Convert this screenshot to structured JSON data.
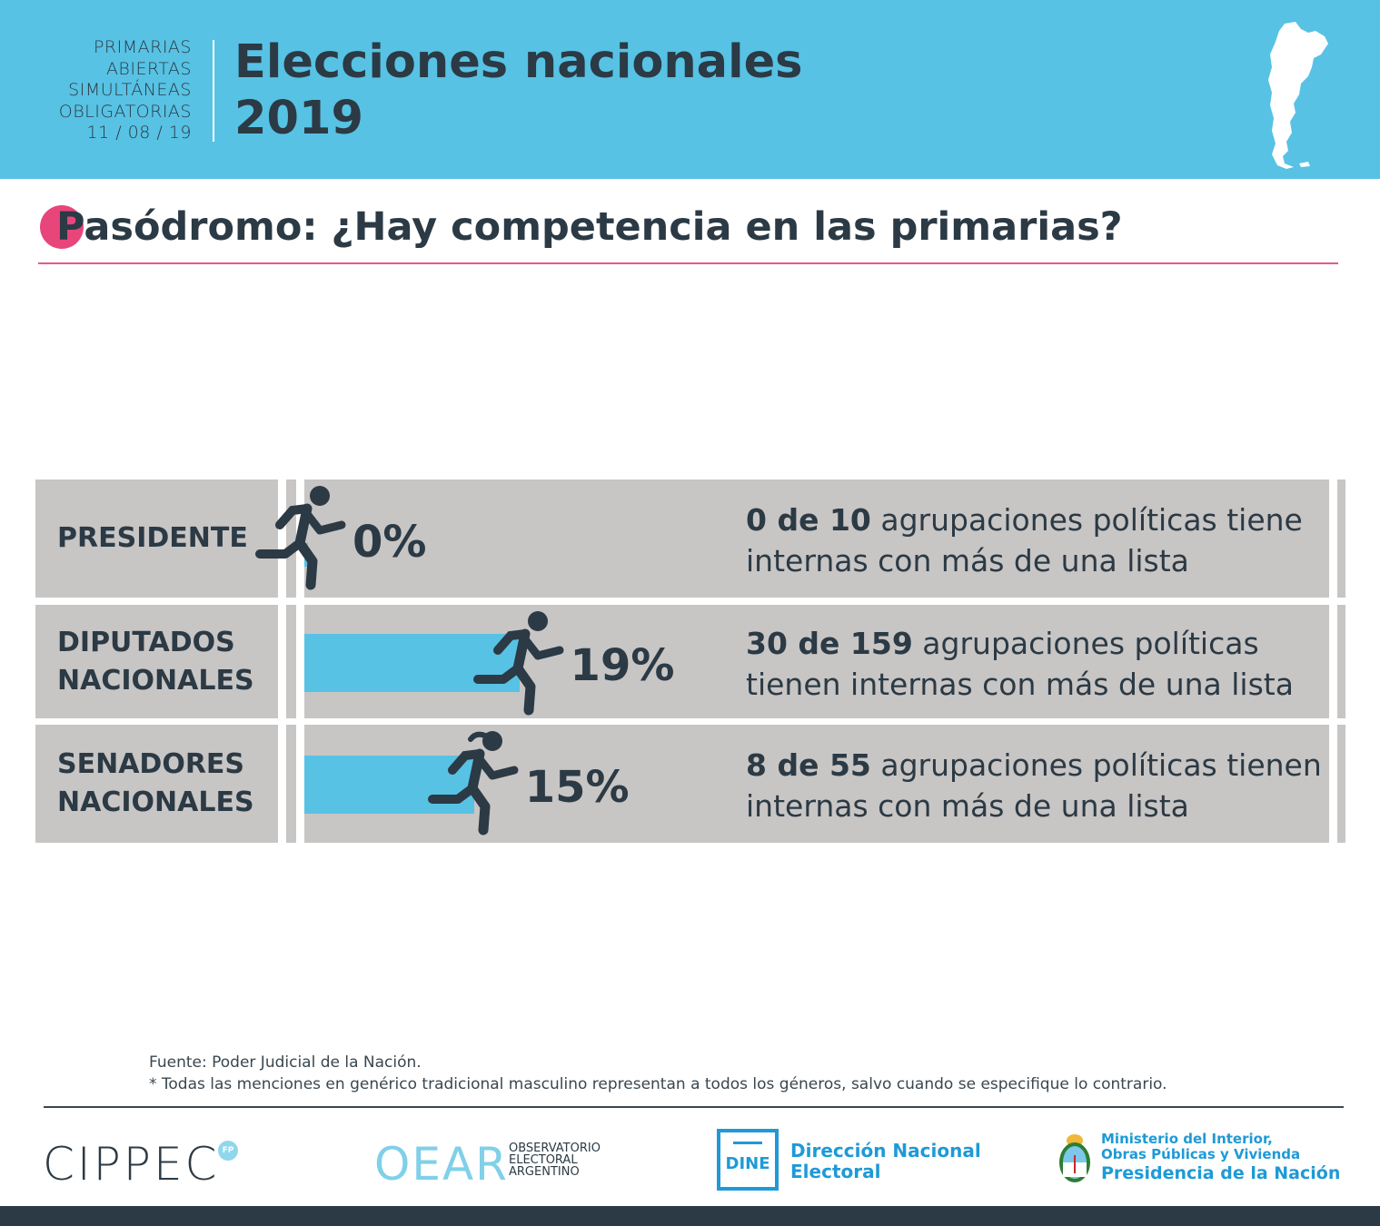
{
  "header": {
    "paso_lines": [
      "PRIMARIAS",
      "ABIERTAS",
      "SIMULTÁNEAS",
      "OBLIGATORIAS",
      "11 / 08 / 19"
    ],
    "title_line1": "Elecciones nacionales",
    "title_line2": "2019",
    "bg_color": "#57c2e4"
  },
  "title": "Pasódromo: ¿Hay competencia en las primarias?",
  "chart_data": {
    "type": "bar",
    "orientation": "horizontal",
    "categories": [
      "PRESIDENTE",
      "DIPUTADOS NACIONALES",
      "SENADORES NACIONALES"
    ],
    "values": [
      0,
      19,
      15
    ],
    "value_labels": [
      "0%",
      "19%",
      "15%"
    ],
    "unit": "%",
    "bar_color": "#57c2e4",
    "rows": [
      {
        "label_lines": [
          "PRESIDENTE"
        ],
        "pct_label": "0%",
        "runner": "male",
        "desc_bold": "0 de 10",
        "desc_rest": " agrupaciones políticas tiene internas con más de una lista"
      },
      {
        "label_lines": [
          "DIPUTADOS",
          "NACIONALES"
        ],
        "pct_label": "19%",
        "runner": "male",
        "desc_bold": "30 de 159",
        "desc_rest": " agrupaciones políticas tienen internas con más de una lista"
      },
      {
        "label_lines": [
          "SENADORES",
          "NACIONALES"
        ],
        "pct_label": "15%",
        "runner": "female",
        "desc_bold": "8 de 55",
        "desc_rest": " agrupaciones políticas tienen internas con más de una lista"
      }
    ]
  },
  "footer": {
    "source": "Fuente: Poder Judicial de la Nación.",
    "note": "* Todas las menciones en genérico tradicional masculino representan a todos los géneros, salvo cuando se especifique lo contrario."
  },
  "logos": {
    "cippec": "CIPPEC",
    "cippec_badge": "FP",
    "oear": "OEAR",
    "oear_sub": [
      "OBSERVATORIO",
      "ELECTORAL",
      "ARGENTINO"
    ],
    "dine": "DINE",
    "dine_name": [
      "Dirección Nacional",
      "Electoral"
    ],
    "ministerio_lines": [
      "Ministerio del Interior,",
      "Obras Públicas y Vivienda",
      "Presidencia de la Nación"
    ]
  }
}
